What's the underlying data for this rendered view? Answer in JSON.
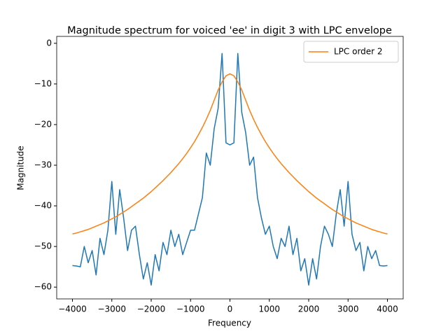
{
  "chart_data": {
    "type": "line",
    "title": "Magnitude spectrum for voiced 'ee' in digit 3 with LPC envelope",
    "xlabel": "Frequency",
    "ylabel": "Magnitude",
    "x": [
      -4000,
      -3900,
      -3800,
      -3700,
      -3600,
      -3500,
      -3400,
      -3300,
      -3200,
      -3100,
      -3000,
      -2900,
      -2800,
      -2700,
      -2600,
      -2500,
      -2400,
      -2300,
      -2200,
      -2100,
      -2000,
      -1900,
      -1800,
      -1700,
      -1600,
      -1500,
      -1400,
      -1300,
      -1200,
      -1100,
      -1000,
      -900,
      -800,
      -700,
      -600,
      -500,
      -400,
      -300,
      -200,
      -100,
      0,
      100,
      200,
      300,
      400,
      500,
      600,
      700,
      800,
      900,
      1000,
      1100,
      1200,
      1300,
      1400,
      1500,
      1600,
      1700,
      1800,
      1900,
      2000,
      2100,
      2200,
      2300,
      2400,
      2500,
      2600,
      2700,
      2800,
      2900,
      3000,
      3100,
      3200,
      3300,
      3400,
      3500,
      3600,
      3700,
      3800,
      3900,
      4000
    ],
    "series": [
      {
        "color": "#1f77b4",
        "legend": false,
        "values": [
          -54.7,
          -54.8,
          -55,
          -50,
          -54,
          -51,
          -57,
          -48,
          -52,
          -46,
          -34,
          -47,
          -36,
          -43,
          -51,
          -46,
          -45,
          -52,
          -58,
          -54,
          -59.5,
          -52,
          -56,
          -49,
          -52,
          -46,
          -50,
          -47,
          -52,
          -49,
          -46,
          -46,
          -42,
          -38,
          -27,
          -30,
          -21,
          -16,
          -2.5,
          -24.5,
          -25,
          -24.5,
          -2.5,
          -17,
          -22,
          -30,
          -28,
          -38,
          -43,
          -47,
          -45,
          -50,
          -53,
          -48,
          -50,
          -45,
          -52,
          -48,
          -56,
          -53,
          -59.5,
          -53,
          -58,
          -50,
          -45,
          -47,
          -50,
          -42,
          -36,
          -45,
          -34,
          -47,
          -51,
          -49,
          -56,
          -50,
          -53,
          -51,
          -54.7,
          -54.8,
          -54.7
        ]
      },
      {
        "name": "LPC order 2",
        "color": "#ff7f0e",
        "values": [
          -46.9,
          -46.7,
          -46.4,
          -46.1,
          -45.8,
          -45.4,
          -45.0,
          -44.6,
          -44.2,
          -43.7,
          -43.2,
          -42.7,
          -42.1,
          -41.5,
          -40.9,
          -40.2,
          -39.5,
          -38.8,
          -38.1,
          -37.3,
          -36.5,
          -35.6,
          -34.7,
          -33.8,
          -32.8,
          -31.8,
          -30.7,
          -29.6,
          -28.4,
          -27.1,
          -25.7,
          -24.2,
          -22.5,
          -20.7,
          -18.7,
          -16.5,
          -14,
          -11.5,
          -9.5,
          -8.0,
          -7.5,
          -8.0,
          -9.5,
          -11.5,
          -14,
          -16.5,
          -18.7,
          -20.7,
          -22.5,
          -24.2,
          -25.7,
          -27.1,
          -28.4,
          -29.6,
          -30.7,
          -31.8,
          -32.8,
          -33.8,
          -34.7,
          -35.6,
          -36.5,
          -37.3,
          -38.1,
          -38.8,
          -39.5,
          -40.2,
          -40.9,
          -41.5,
          -42.1,
          -42.7,
          -43.2,
          -43.7,
          -44.2,
          -44.6,
          -45.0,
          -45.4,
          -45.8,
          -46.1,
          -46.4,
          -46.7,
          -46.9
        ]
      }
    ],
    "xlim": [
      -4400,
      4400
    ],
    "ylim": [
      -62.9,
      1.7
    ],
    "xticks": [
      {
        "value": -4000,
        "label": "−4000"
      },
      {
        "value": -3000,
        "label": "−3000"
      },
      {
        "value": -2000,
        "label": "−2000"
      },
      {
        "value": -1000,
        "label": "−1000"
      },
      0,
      1000,
      2000,
      3000,
      4000
    ],
    "yticks": [
      0,
      {
        "value": -10,
        "label": "−10"
      },
      {
        "value": -20,
        "label": "−20"
      },
      {
        "value": -30,
        "label": "−30"
      },
      {
        "value": -40,
        "label": "−40"
      },
      {
        "value": -50,
        "label": "−50"
      },
      {
        "value": -60,
        "label": "−60"
      }
    ],
    "legend": "upper right"
  }
}
